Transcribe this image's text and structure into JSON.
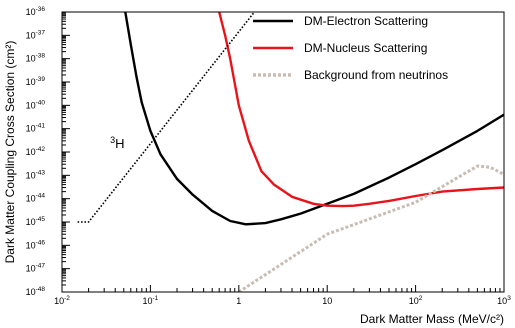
{
  "chart_data": {
    "type": "line",
    "title": "",
    "xlabel": "Dark Matter Mass (MeV/c²)",
    "ylabel": "Dark Matter Coupling Cross Section (cm²)",
    "x_scale": "log",
    "y_scale": "log",
    "xlim": [
      0.01,
      1000
    ],
    "ylim": [
      1e-48,
      1e-36
    ],
    "grid": false,
    "legend_position": "top-right",
    "x_ticks": [
      {
        "value": 0.01,
        "base": "10",
        "exp": "-2"
      },
      {
        "value": 0.1,
        "base": "10",
        "exp": "-1"
      },
      {
        "value": 1,
        "base": "1",
        "exp": ""
      },
      {
        "value": 10,
        "base": "10",
        "exp": ""
      },
      {
        "value": 100,
        "base": "10",
        "exp": "2"
      },
      {
        "value": 1000,
        "base": "10",
        "exp": "3"
      }
    ],
    "y_ticks": [
      {
        "value": 1e-36,
        "base": "10",
        "exp": "-36"
      },
      {
        "value": 1e-37,
        "base": "10",
        "exp": "-37"
      },
      {
        "value": 1e-38,
        "base": "10",
        "exp": "-38"
      },
      {
        "value": 1e-39,
        "base": "10",
        "exp": "-39"
      },
      {
        "value": 1e-40,
        "base": "10",
        "exp": "-40"
      },
      {
        "value": 1e-41,
        "base": "10",
        "exp": "-41"
      },
      {
        "value": 1e-42,
        "base": "10",
        "exp": "-42"
      },
      {
        "value": 1e-43,
        "base": "10",
        "exp": "-43"
      },
      {
        "value": 1e-44,
        "base": "10",
        "exp": "-44"
      },
      {
        "value": 1e-45,
        "base": "10",
        "exp": "-45"
      },
      {
        "value": 1e-46,
        "base": "10",
        "exp": "-46"
      },
      {
        "value": 1e-47,
        "base": "10",
        "exp": "-47"
      },
      {
        "value": 1e-48,
        "base": "10",
        "exp": "-48"
      }
    ],
    "series": [
      {
        "name": "DM-Electron Scattering",
        "color": "#000000",
        "style": "solid",
        "x": [
          0.052,
          0.06,
          0.07,
          0.08,
          0.1,
          0.13,
          0.2,
          0.3,
          0.5,
          0.8,
          1.2,
          2,
          3,
          5,
          10,
          20,
          50,
          100,
          200,
          500,
          1000
        ],
        "y": [
          1e-36,
          4e-38,
          1.5e-39,
          1.3e-40,
          8e-42,
          8e-43,
          7e-44,
          1.5e-44,
          3e-45,
          1.1e-45,
          8e-46,
          9e-46,
          1.3e-45,
          2.3e-45,
          6e-45,
          1.6e-44,
          8e-44,
          3e-43,
          1.2e-42,
          8e-42,
          4e-41
        ]
      },
      {
        "name": "DM-Nucleus Scattering",
        "color": "#e8141b",
        "style": "solid",
        "x": [
          0.6,
          0.7,
          0.8,
          1,
          1.3,
          1.8,
          2.5,
          4,
          7,
          10,
          15,
          20,
          30,
          50,
          100,
          200,
          500,
          1000
        ],
        "y": [
          1e-36,
          1e-37,
          1e-38,
          1e-40,
          3e-42,
          1.5e-43,
          4e-44,
          1.2e-44,
          6e-45,
          5e-45,
          4.8e-45,
          5e-45,
          6e-45,
          8e-45,
          1.3e-44,
          2e-44,
          2.6e-44,
          3e-44
        ]
      },
      {
        "name": "Background from neutrinos",
        "color": "#c8bdb4",
        "style": "dotted",
        "x": [
          1,
          10,
          100,
          500,
          700,
          1000
        ],
        "y": [
          1e-48,
          3e-46,
          7e-45,
          2.5e-43,
          2.2e-43,
          1.1e-43
        ]
      },
      {
        "name": "³H",
        "color": "#000000",
        "style": "dotted",
        "x": [
          0.015,
          0.02,
          1.5
        ],
        "y": [
          1e-45,
          1e-45,
          1e-36
        ]
      }
    ],
    "annotations": [
      {
        "base": "H",
        "sup": "3",
        "x": 0.035,
        "y": 1.5e-42
      }
    ]
  }
}
